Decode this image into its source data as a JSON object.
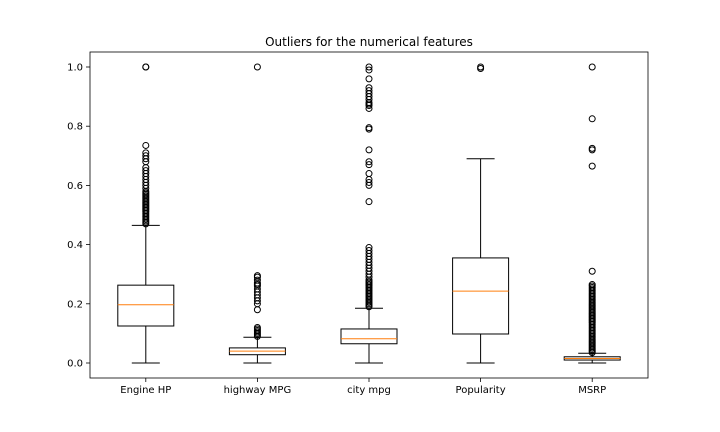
{
  "chart_data": {
    "type": "boxplot",
    "title": "Outliers for the numerical features",
    "xlabel": "",
    "ylabel": "",
    "ylim": [
      -0.05,
      1.05
    ],
    "yticks": [
      0.0,
      0.2,
      0.4,
      0.6,
      0.8,
      1.0
    ],
    "ytick_labels": [
      "0.0",
      "0.2",
      "0.4",
      "0.6",
      "0.8",
      "1.0"
    ],
    "grid": false,
    "colors": {
      "box": "#000000",
      "median": "#ff7f0e",
      "flier": "#000000"
    },
    "categories": [
      "Engine HP",
      "highway MPG",
      "city mpg",
      "Popularity",
      "MSRP"
    ],
    "boxes": [
      {
        "name": "Engine HP",
        "whisker_low": 0.0,
        "q1": 0.125,
        "median": 0.197,
        "q3": 0.263,
        "whisker_high": 0.465,
        "outliers": [
          0.47,
          0.475,
          0.48,
          0.485,
          0.49,
          0.495,
          0.5,
          0.505,
          0.51,
          0.515,
          0.52,
          0.525,
          0.53,
          0.535,
          0.54,
          0.545,
          0.55,
          0.555,
          0.56,
          0.565,
          0.57,
          0.575,
          0.58,
          0.59,
          0.6,
          0.61,
          0.62,
          0.63,
          0.64,
          0.65,
          0.66,
          0.68,
          0.69,
          0.7,
          0.71,
          0.735,
          1.0,
          1.0
        ]
      },
      {
        "name": "highway MPG",
        "whisker_low": 0.0,
        "q1": 0.028,
        "median": 0.04,
        "q3": 0.051,
        "whisker_high": 0.087,
        "outliers": [
          0.09,
          0.095,
          0.1,
          0.105,
          0.11,
          0.115,
          0.12,
          0.18,
          0.2,
          0.21,
          0.22,
          0.23,
          0.24,
          0.25,
          0.26,
          0.265,
          0.27,
          0.28,
          0.29,
          0.295,
          1.0
        ]
      },
      {
        "name": "city mpg",
        "whisker_low": 0.0,
        "q1": 0.065,
        "median": 0.082,
        "q3": 0.115,
        "whisker_high": 0.185,
        "outliers": [
          0.19,
          0.195,
          0.2,
          0.205,
          0.21,
          0.215,
          0.22,
          0.225,
          0.23,
          0.235,
          0.24,
          0.245,
          0.25,
          0.255,
          0.26,
          0.265,
          0.27,
          0.275,
          0.28,
          0.29,
          0.3,
          0.31,
          0.32,
          0.33,
          0.34,
          0.35,
          0.36,
          0.37,
          0.38,
          0.39,
          0.545,
          0.6,
          0.61,
          0.62,
          0.64,
          0.67,
          0.68,
          0.72,
          0.79,
          0.795,
          0.86,
          0.87,
          0.875,
          0.88,
          0.89,
          0.9,
          0.91,
          0.92,
          0.93,
          0.96,
          0.99,
          1.0
        ]
      },
      {
        "name": "Popularity",
        "whisker_low": 0.0,
        "q1": 0.098,
        "median": 0.243,
        "q3": 0.355,
        "whisker_high": 0.69,
        "outliers": [
          0.995,
          1.0
        ]
      },
      {
        "name": "MSRP",
        "whisker_low": 0.0,
        "q1": 0.01,
        "median": 0.015,
        "q3": 0.021,
        "whisker_high": 0.033,
        "outliers": [
          0.035,
          0.04,
          0.045,
          0.05,
          0.055,
          0.06,
          0.065,
          0.07,
          0.075,
          0.08,
          0.085,
          0.09,
          0.095,
          0.1,
          0.105,
          0.11,
          0.115,
          0.12,
          0.125,
          0.13,
          0.135,
          0.14,
          0.145,
          0.15,
          0.155,
          0.16,
          0.165,
          0.17,
          0.175,
          0.18,
          0.185,
          0.19,
          0.195,
          0.2,
          0.205,
          0.21,
          0.215,
          0.22,
          0.225,
          0.23,
          0.235,
          0.24,
          0.245,
          0.25,
          0.255,
          0.26,
          0.265,
          0.31,
          0.665,
          0.72,
          0.725,
          0.825,
          1.0
        ]
      }
    ]
  }
}
